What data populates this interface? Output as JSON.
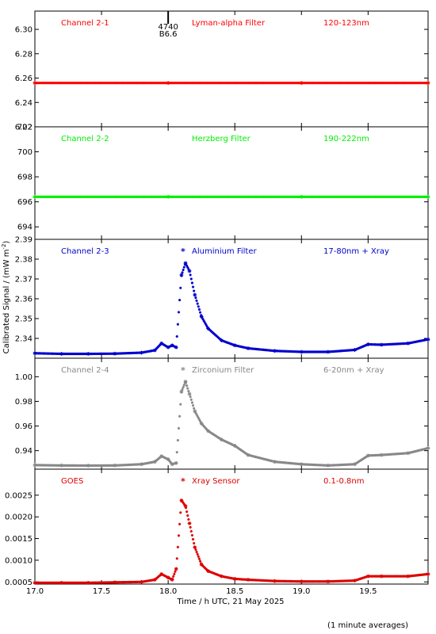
{
  "chart_data": {
    "type": "scatter",
    "ylabel": "Calibrated Signal / (mW m",
    "ylabel_sup": "-2",
    "ylabel_end": ")",
    "xlabel": "Time / h UTC, 21 May 2025",
    "footnote": "(1 minute averages)",
    "xlim": [
      17.0,
      19.95
    ],
    "xticks": [
      "17.0",
      "17.5",
      "18.0",
      "18.5",
      "19.0",
      "19.5"
    ],
    "marker": {
      "value": 18.0,
      "label_top": "4740",
      "label_bottom": "B6.6"
    },
    "panels": [
      {
        "channel": "Channel 2-1",
        "filter": "Lyman-alpha Filter",
        "band": "120-123nm",
        "color": "#ff0000",
        "asterisk": false,
        "ylim": [
          6.22,
          6.315
        ],
        "yticks": [
          "6.22",
          "6.24",
          "6.26",
          "6.28",
          "6.30"
        ],
        "series": {
          "x": [
            17.0,
            18.0,
            19.0,
            19.95
          ],
          "y": [
            6.256,
            6.256,
            6.256,
            6.256
          ]
        }
      },
      {
        "channel": "Channel 2-2",
        "filter": "Herzberg Filter",
        "band": "190-222nm",
        "color": "#00ee00",
        "asterisk": false,
        "ylim": [
          693,
          702
        ],
        "yticks": [
          "694",
          "696",
          "698",
          "700",
          "702"
        ],
        "series": {
          "x": [
            17.0,
            18.0,
            19.0,
            19.95
          ],
          "y": [
            696.4,
            696.4,
            696.4,
            696.4
          ]
        }
      },
      {
        "channel": "Channel 2-3",
        "filter": "Aluminium Filter",
        "band": "17-80nm + Xray",
        "color": "#0000cc",
        "asterisk": true,
        "ylim": [
          2.33,
          2.39
        ],
        "yticks": [
          "2.34",
          "2.35",
          "2.36",
          "2.37",
          "2.38",
          "2.39"
        ],
        "series": {
          "x": [
            17.0,
            17.2,
            17.4,
            17.6,
            17.8,
            17.9,
            17.95,
            18.0,
            18.03,
            18.06,
            18.1,
            18.13,
            18.16,
            18.2,
            18.25,
            18.3,
            18.4,
            18.5,
            18.6,
            18.8,
            19.0,
            19.2,
            19.4,
            19.5,
            19.6,
            19.8,
            19.95
          ],
          "y": [
            2.3325,
            2.3322,
            2.3322,
            2.3323,
            2.3328,
            2.334,
            2.3375,
            2.3355,
            2.3365,
            2.3355,
            2.372,
            2.378,
            2.374,
            2.362,
            2.351,
            2.345,
            2.339,
            2.3365,
            2.335,
            2.3337,
            2.3332,
            2.3332,
            2.3342,
            2.337,
            2.3368,
            2.3375,
            2.3395
          ]
        }
      },
      {
        "channel": "Channel 2-4",
        "filter": "Zirconium Filter",
        "band": "6-20nm + Xray",
        "color": "#888888",
        "asterisk": true,
        "ylim": [
          0.925,
          1.015
        ],
        "yticks": [
          "0.94",
          "0.96",
          "0.98",
          "1.00"
        ],
        "series": {
          "x": [
            17.0,
            17.2,
            17.4,
            17.6,
            17.8,
            17.9,
            17.95,
            18.0,
            18.03,
            18.06,
            18.1,
            18.13,
            18.16,
            18.2,
            18.25,
            18.3,
            18.4,
            18.5,
            18.6,
            18.8,
            19.0,
            19.2,
            19.4,
            19.5,
            19.6,
            19.8,
            19.95
          ],
          "y": [
            0.9283,
            0.928,
            0.9279,
            0.928,
            0.929,
            0.931,
            0.9355,
            0.933,
            0.929,
            0.93,
            0.988,
            0.996,
            0.986,
            0.972,
            0.962,
            0.956,
            0.949,
            0.944,
            0.9365,
            0.931,
            0.929,
            0.928,
            0.929,
            0.936,
            0.9365,
            0.938,
            0.942
          ]
        }
      },
      {
        "channel": "GOES",
        "filter": "Xray Sensor",
        "band": "0.1-0.8nm",
        "color": "#dd0000",
        "asterisk": true,
        "ylim": [
          0.00045,
          0.0031
        ],
        "yticks": [
          "0.0005",
          "0.0010",
          "0.0015",
          "0.0020",
          "0.0025"
        ],
        "series": {
          "x": [
            17.0,
            17.2,
            17.4,
            17.6,
            17.8,
            17.9,
            17.95,
            18.0,
            18.03,
            18.06,
            18.1,
            18.13,
            18.16,
            18.2,
            18.25,
            18.3,
            18.4,
            18.5,
            18.6,
            18.8,
            19.0,
            19.2,
            19.4,
            19.5,
            19.6,
            19.8,
            19.95
          ],
          "y": [
            0.00048,
            0.00048,
            0.00048,
            0.00049,
            0.0005,
            0.00055,
            0.00068,
            0.0006,
            0.00055,
            0.0008,
            0.00238,
            0.00225,
            0.00185,
            0.0013,
            0.0009,
            0.00075,
            0.00063,
            0.00057,
            0.00055,
            0.00052,
            0.00051,
            0.00051,
            0.00053,
            0.00063,
            0.00063,
            0.00063,
            0.00068
          ]
        }
      }
    ]
  }
}
